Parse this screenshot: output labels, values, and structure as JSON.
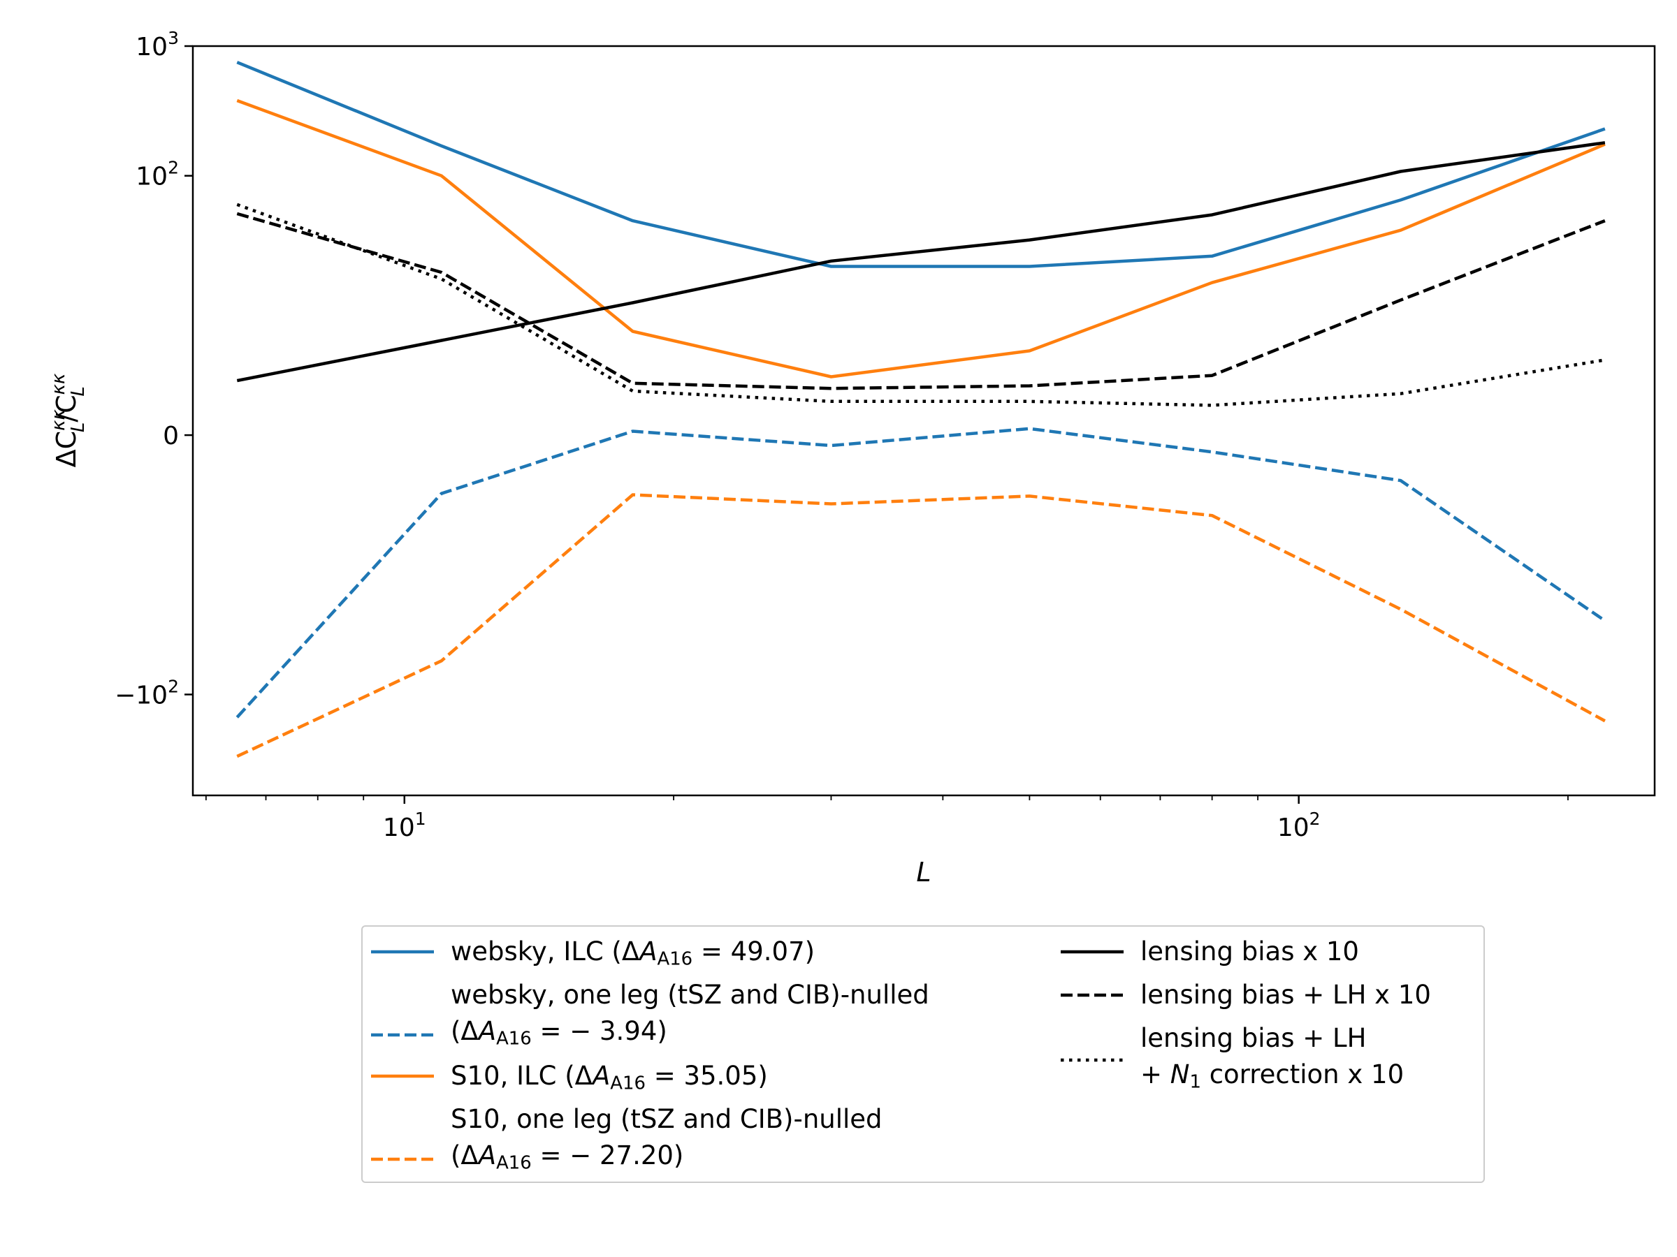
{
  "chart_data": {
    "type": "line",
    "xscale": "log",
    "yscale": "symlog",
    "symlog_linthresh": 10,
    "xlim": [
      5.8,
      250
    ],
    "ylim": [
      -600,
      1000
    ],
    "xlabel": "L",
    "ylabel": "ΔC_L^κκ / C_L^κκ",
    "x_ticks": [
      {
        "value": 10,
        "base": "10",
        "exp": "1"
      },
      {
        "value": 100,
        "base": "10",
        "exp": "2"
      }
    ],
    "y_ticks": [
      {
        "value": 1000,
        "sign": "",
        "base": "10",
        "exp": "3"
      },
      {
        "value": 100,
        "sign": "",
        "base": "10",
        "exp": "2"
      },
      {
        "value": 0,
        "text": "0"
      },
      {
        "value": -100,
        "sign": "−",
        "base": "10",
        "exp": "2"
      }
    ],
    "x": [
      6.5,
      11,
      18,
      30,
      50,
      80,
      130,
      220
    ],
    "series": [
      {
        "name": "websky, ILC",
        "color": "#1f77b4",
        "dash": "solid",
        "values": [
          750,
          170,
          45,
          20,
          20,
          24,
          65,
          230
        ],
        "legend": {
          "pre": "websky, ILC (Δ",
          "A": "A",
          "sub": "A16",
          "post": " = 49.07)"
        }
      },
      {
        "name": "websky, one leg (tSZ and CIB)-nulled",
        "color": "#1f77b4",
        "dash": "dashed",
        "values": [
          -150,
          -4.5,
          0.3,
          -0.8,
          0.5,
          -1.3,
          -3.5,
          -27
        ],
        "legend": {
          "line1": "websky, one leg (tSZ and CIB)-nulled",
          "pre": " (Δ",
          "A": "A",
          "sub": "A16",
          "post": " = − 3.94)"
        }
      },
      {
        "name": "S10, ILC",
        "color": "#ff7f0e",
        "dash": "solid",
        "values": [
          380,
          100,
          8,
          4.5,
          6.5,
          15,
          38,
          175
        ],
        "legend": {
          "pre": "S10, ILC (Δ",
          "A": "A",
          "sub": "A16",
          "post": " = 35.05)"
        }
      },
      {
        "name": "S10, one leg (tSZ and CIB)-nulled",
        "color": "#ff7f0e",
        "dash": "dashed",
        "values": [
          -300,
          -55,
          -4.6,
          -5.3,
          -4.7,
          -6.2,
          -22,
          -160
        ],
        "legend": {
          "line1": "S10, one leg (tSZ and CIB)-nulled",
          "pre": " (Δ",
          "A": "A",
          "sub": "A16",
          "post": " = − 27.20)"
        }
      },
      {
        "name": "lensing bias x 10",
        "color": "#000000",
        "dash": "solid",
        "values": [
          4.2,
          7.3,
          10.5,
          22,
          32,
          50,
          108,
          180
        ],
        "legend": {
          "text": "lensing bias x 10"
        }
      },
      {
        "name": "lensing bias + LH x 10",
        "color": "#000000",
        "dash": "dashed",
        "values": [
          51,
          18,
          4,
          3.6,
          3.8,
          4.6,
          11,
          45
        ],
        "legend": {
          "text": "lensing bias + LH x 10"
        }
      },
      {
        "name": "lensing bias + LH + N1 correction x 10",
        "color": "#000000",
        "dash": "dotted",
        "values": [
          60,
          16,
          3.4,
          2.6,
          2.6,
          2.3,
          3.2,
          5.8
        ],
        "legend": {
          "line1": "lensing bias + LH",
          "pre2": "+ ",
          "N": "N",
          "nsub": "1",
          "post2": " correction x 10"
        }
      }
    ]
  }
}
